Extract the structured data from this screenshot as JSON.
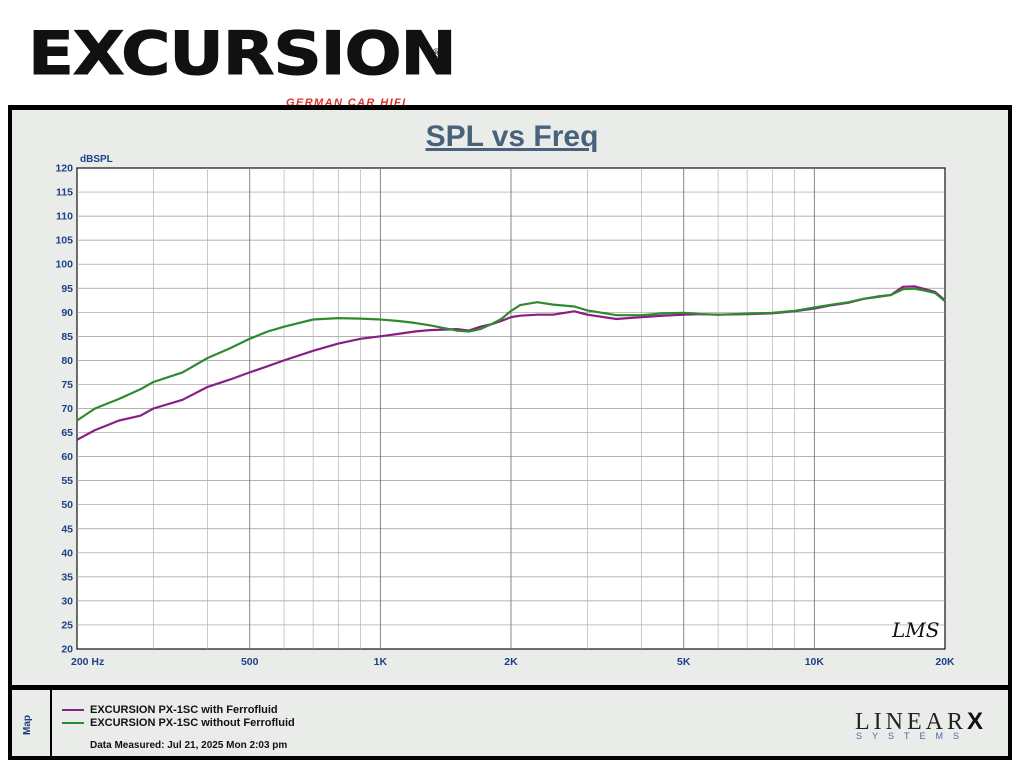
{
  "logo": {
    "wordmark": "EXCURSION",
    "registered": "®",
    "tagline": "GERMAN CAR HIFI"
  },
  "colors": {
    "series1": "#8b1e86",
    "series2": "#2f8a2f",
    "axis_text": "#1f3f87",
    "title": "#47627a"
  },
  "chart_data": {
    "type": "line",
    "title": "SPL vs Freq",
    "ylabel": "dBSPL",
    "xlabel": "",
    "x_scale": "log",
    "xlim": [
      200,
      20000
    ],
    "ylim": [
      20,
      120
    ],
    "y_ticks": [
      20,
      25,
      30,
      35,
      40,
      45,
      50,
      55,
      60,
      65,
      70,
      75,
      80,
      85,
      90,
      95,
      100,
      105,
      110,
      115,
      120
    ],
    "x_tick_labels": [
      {
        "value": 200,
        "label": "200 Hz"
      },
      {
        "value": 500,
        "label": "500"
      },
      {
        "value": 1000,
        "label": "1K"
      },
      {
        "value": 2000,
        "label": "2K"
      },
      {
        "value": 5000,
        "label": "5K"
      },
      {
        "value": 10000,
        "label": "10K"
      },
      {
        "value": 20000,
        "label": "20K"
      }
    ],
    "grid": true,
    "series": [
      {
        "name": "EXCURSION PX-1SC with Ferrofluid",
        "color": "#8b1e86",
        "x": [
          200,
          220,
          250,
          280,
          300,
          350,
          400,
          450,
          500,
          550,
          600,
          700,
          800,
          900,
          1000,
          1100,
          1200,
          1300,
          1500,
          1600,
          1700,
          1800,
          1900,
          2000,
          2100,
          2300,
          2500,
          2800,
          3000,
          3500,
          4000,
          4500,
          5000,
          5500,
          6000,
          7000,
          8000,
          9000,
          10000,
          11000,
          12000,
          13000,
          14000,
          15000,
          16000,
          17000,
          18000,
          19000,
          20000
        ],
        "y": [
          63.5,
          65.5,
          67.5,
          68.5,
          70,
          71.8,
          74.5,
          76,
          77.5,
          78.8,
          80,
          82,
          83.5,
          84.5,
          85,
          85.5,
          86,
          86.3,
          86.5,
          86.2,
          87,
          87.5,
          88.2,
          89,
          89.3,
          89.5,
          89.5,
          90.2,
          89.5,
          88.6,
          89,
          89.3,
          89.5,
          89.6,
          89.5,
          89.6,
          89.8,
          90.2,
          90.8,
          91.5,
          92,
          92.8,
          93.2,
          93.6,
          95.3,
          95.4,
          94.8,
          94.2,
          92.5
        ]
      },
      {
        "name": "EXCURSION PX-1SC without Ferrofluid",
        "color": "#2f8a2f",
        "x": [
          200,
          220,
          250,
          280,
          300,
          350,
          400,
          450,
          500,
          550,
          600,
          700,
          800,
          900,
          1000,
          1100,
          1200,
          1300,
          1500,
          1600,
          1700,
          1800,
          1900,
          2000,
          2100,
          2300,
          2500,
          2800,
          3000,
          3500,
          4000,
          4500,
          5000,
          5500,
          6000,
          7000,
          8000,
          9000,
          10000,
          11000,
          12000,
          13000,
          14000,
          15000,
          16000,
          17000,
          18000,
          19000,
          20000
        ],
        "y": [
          67.5,
          70,
          72,
          74,
          75.5,
          77.5,
          80.5,
          82.5,
          84.5,
          86,
          87,
          88.5,
          88.8,
          88.7,
          88.5,
          88.2,
          87.8,
          87.3,
          86.2,
          86,
          86.5,
          87.5,
          88.6,
          90.3,
          91.5,
          92.1,
          91.6,
          91.2,
          90.4,
          89.4,
          89.4,
          89.8,
          89.9,
          89.6,
          89.5,
          89.7,
          89.9,
          90.3,
          91,
          91.6,
          92.1,
          92.8,
          93.3,
          93.6,
          94.8,
          94.9,
          94.5,
          94.0,
          92.3
        ]
      }
    ]
  },
  "legend": {
    "panel_label": "Map",
    "items": [
      "EXCURSION PX-1SC with Ferrofluid",
      "EXCURSION PX-1SC without Ferrofluid"
    ],
    "measured": "Data Measured: Jul 21, 2025  Mon  2:03 pm"
  },
  "branding": {
    "name": "LINEAR",
    "name_x": "X",
    "sub": "SYSTEMS",
    "signature": "LMS"
  }
}
